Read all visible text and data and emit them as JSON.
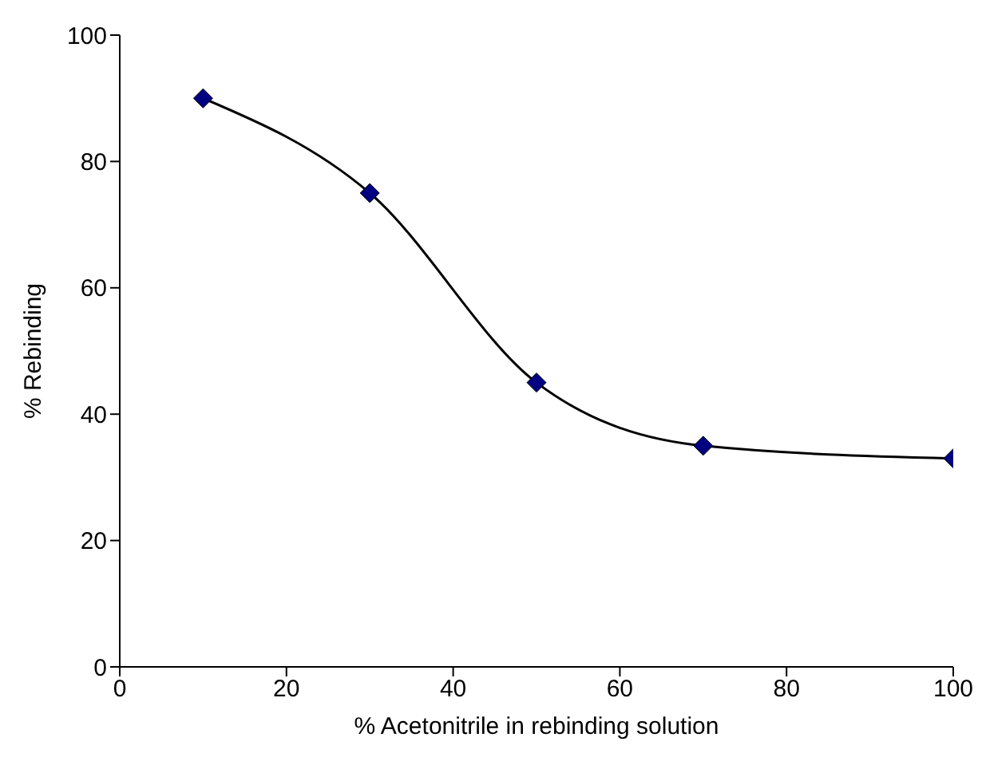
{
  "chart_data": {
    "type": "line",
    "xlabel": "% Acetonitrile in rebinding solution",
    "ylabel": "% Rebinding",
    "x": [
      10,
      30,
      50,
      70,
      100
    ],
    "series": [
      {
        "color": "#000080",
        "values": [
          90,
          75,
          45,
          35,
          33
        ]
      }
    ],
    "xlim": [
      0,
      100
    ],
    "xticks": [
      0,
      20,
      40,
      60,
      80,
      100
    ],
    "ylim": [
      0,
      100
    ],
    "yticks": [
      0,
      20,
      40,
      60,
      80,
      100
    ],
    "grid": false,
    "legend": false,
    "marker": "diamond",
    "line_style": "solid"
  }
}
